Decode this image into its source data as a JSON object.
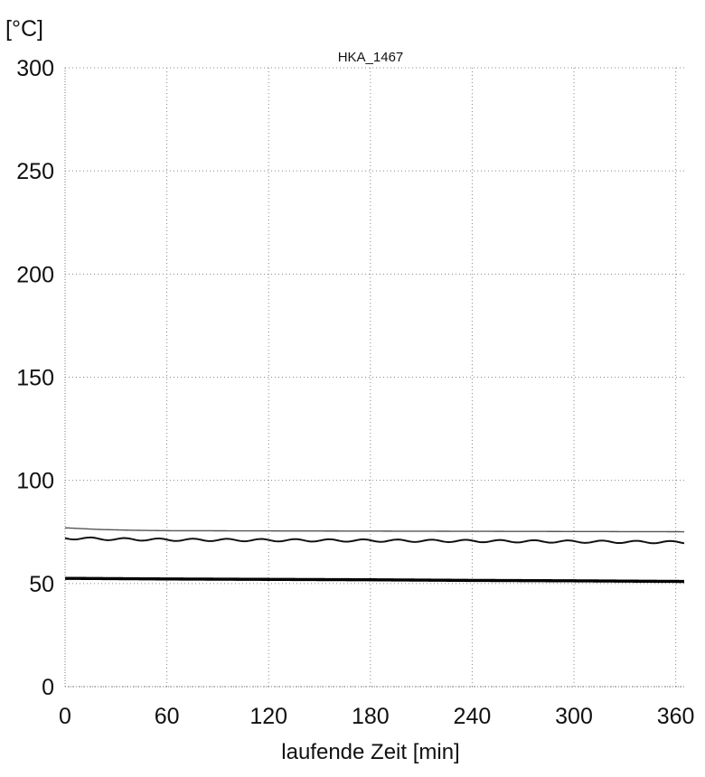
{
  "chart_data": {
    "type": "line",
    "title": "HKA_1467",
    "unit_label": "[°C]",
    "xlabel": "laufende Zeit [min]",
    "ylabel": "",
    "xlim": [
      0,
      365
    ],
    "ylim": [
      0,
      300
    ],
    "x_ticks": [
      0,
      60,
      120,
      180,
      240,
      300,
      360
    ],
    "y_ticks": [
      0,
      50,
      100,
      150,
      200,
      250,
      300
    ],
    "grid": true,
    "legend": "none",
    "series": [
      {
        "color": "#555555",
        "style": "thin",
        "x": [
          0,
          20,
          40,
          60,
          120,
          180,
          240,
          300,
          365
        ],
        "y": [
          77,
          76.2,
          75.8,
          75.6,
          75.5,
          75.4,
          75.3,
          75.2,
          75.1
        ]
      },
      {
        "color": "#111111",
        "style": "wavy",
        "x": [
          0,
          30,
          60,
          120,
          180,
          240,
          300,
          365
        ],
        "y": [
          72,
          71.5,
          71.2,
          71,
          70.8,
          70.6,
          70.3,
          70
        ]
      },
      {
        "color": "#000000",
        "style": "thick",
        "x": [
          0,
          60,
          120,
          180,
          240,
          300,
          365
        ],
        "y": [
          52.5,
          52.2,
          52,
          51.8,
          51.5,
          51.3,
          51
        ]
      }
    ]
  }
}
